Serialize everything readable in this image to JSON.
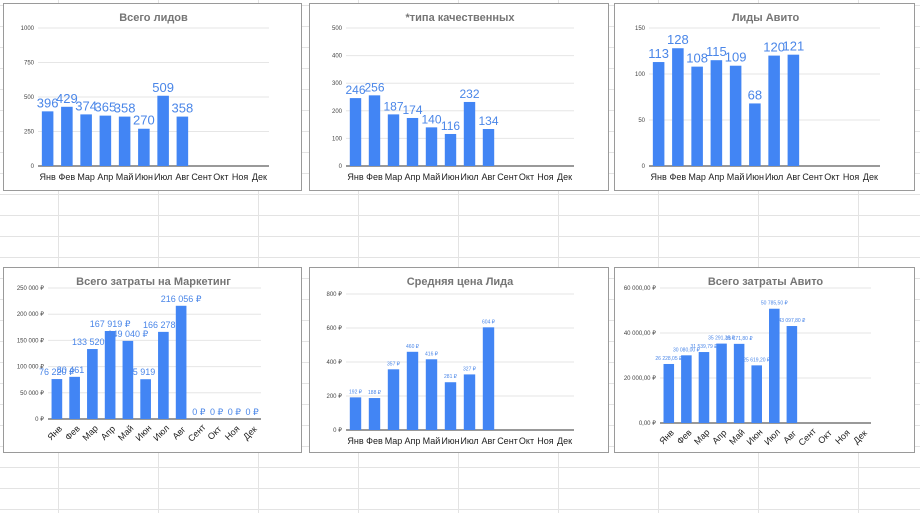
{
  "chart_data": [
    {
      "type": "bar",
      "title": "Всего лидов",
      "categories": [
        "Янв",
        "Фев",
        "Мар",
        "Апр",
        "Май",
        "Июн",
        "Июл",
        "Авг",
        "Сент",
        "Окт",
        "Ноя",
        "Дек"
      ],
      "values": [
        396,
        429,
        374,
        365,
        358,
        270,
        509,
        358,
        null,
        null,
        null,
        null
      ],
      "data_labels": [
        "396",
        "429",
        "374",
        "365",
        "358",
        "270",
        "509",
        "358",
        "",
        "",
        "",
        ""
      ],
      "yticks": [
        0,
        250,
        500,
        750,
        1000
      ],
      "ytick_labels": [
        "0",
        "250",
        "500",
        "750",
        "1000"
      ],
      "ylim": [
        0,
        1000
      ],
      "bar_color": "#4285f4",
      "label_color": "#4a86e8",
      "grid": true,
      "legend": "none"
    },
    {
      "type": "bar",
      "title": "*типа качественных",
      "categories": [
        "Янв",
        "Фев",
        "Мар",
        "Апр",
        "Май",
        "Июн",
        "Июл",
        "Авг",
        "Сент",
        "Окт",
        "Ноя",
        "Дек"
      ],
      "values": [
        246,
        256,
        187,
        174,
        140,
        116,
        232,
        134,
        null,
        null,
        null,
        null
      ],
      "data_labels": [
        "246",
        "256",
        "187",
        "174",
        "140",
        "116",
        "232",
        "134",
        "",
        "",
        "",
        ""
      ],
      "yticks": [
        0,
        100,
        200,
        300,
        400,
        500
      ],
      "ytick_labels": [
        "0",
        "100",
        "200",
        "300",
        "400",
        "500"
      ],
      "ylim": [
        0,
        500
      ],
      "bar_color": "#4285f4",
      "label_color": "#4a86e8",
      "grid": true,
      "legend": "none"
    },
    {
      "type": "bar",
      "title": "Лиды Авито",
      "categories": [
        "Янв",
        "Фев",
        "Мар",
        "Апр",
        "Май",
        "Июн",
        "Июл",
        "Авг",
        "Сент",
        "Окт",
        "Ноя",
        "Дек"
      ],
      "values": [
        113,
        128,
        108,
        115,
        109,
        68,
        120,
        121,
        null,
        null,
        null,
        null
      ],
      "data_labels": [
        "113",
        "128",
        "108",
        "115",
        "109",
        "68",
        "120",
        "121",
        "",
        "",
        "",
        ""
      ],
      "yticks": [
        0,
        50,
        100,
        150
      ],
      "ytick_labels": [
        "0",
        "50",
        "100",
        "150"
      ],
      "ylim": [
        0,
        150
      ],
      "bar_color": "#4285f4",
      "label_color": "#4a86e8",
      "grid": true,
      "legend": "none"
    },
    {
      "type": "bar",
      "title": "Всего затраты на Маркетинг",
      "categories": [
        "Янв",
        "Фев",
        "Мар",
        "Апр",
        "Май",
        "Июн",
        "Июл",
        "Авг",
        "Сент",
        "Окт",
        "Ноя",
        "Дек"
      ],
      "values": [
        76220,
        80461,
        133520,
        167919,
        149040,
        75919,
        166278,
        216056,
        0,
        0,
        0,
        0
      ],
      "data_labels": [
        "76 220 ₽",
        "80 461 ₽",
        "133 520 ₽",
        "167 919 ₽",
        "149 040 ₽",
        "75 919 ₽",
        "166 278 ₽",
        "216 056 ₽",
        "0 ₽",
        "0 ₽",
        "0 ₽",
        "0 ₽"
      ],
      "yticks": [
        0,
        50000,
        100000,
        150000,
        200000,
        250000
      ],
      "ytick_labels": [
        "0 ₽",
        "50 000 ₽",
        "100 000 ₽",
        "150 000 ₽",
        "200 000 ₽",
        "250 000 ₽"
      ],
      "ylim": [
        0,
        250000
      ],
      "rotated_categories": true,
      "bar_color": "#4285f4",
      "label_color": "#4a86e8",
      "grid": true,
      "legend": "none"
    },
    {
      "type": "bar",
      "title": "Средняя цена Лида",
      "categories": [
        "Янв",
        "Фев",
        "Мар",
        "Апр",
        "Май",
        "Июн",
        "Июл",
        "Авг",
        "Сент",
        "Окт",
        "Ноя",
        "Дек"
      ],
      "values": [
        192,
        188,
        357,
        460,
        416,
        281,
        327,
        604,
        null,
        null,
        null,
        null
      ],
      "data_labels": [
        "192 ₽",
        "188 ₽",
        "357 ₽",
        "460 ₽",
        "416 ₽",
        "281 ₽",
        "327 ₽",
        "604 ₽",
        "",
        "",
        "",
        ""
      ],
      "yticks": [
        0,
        200,
        400,
        600,
        800
      ],
      "ytick_labels": [
        "0 ₽",
        "200 ₽",
        "400 ₽",
        "600 ₽",
        "800 ₽"
      ],
      "ylim": [
        0,
        800
      ],
      "bar_color": "#4285f4",
      "label_color": "#4a86e8",
      "grid": true,
      "legend": "none"
    },
    {
      "type": "bar",
      "title": "Всего затраты Авито",
      "categories": [
        "Янв",
        "Фев",
        "Мар",
        "Апр",
        "Май",
        "Июн",
        "Июл",
        "Авг",
        "Сент",
        "Окт",
        "Ноя",
        "Дек"
      ],
      "values": [
        26228.05,
        30080,
        31539.79,
        35291.35,
        35171.8,
        25619.2,
        50785.5,
        43097.8,
        null,
        null,
        null,
        null
      ],
      "data_labels": [
        "26 228,05 ₽",
        "30 080,00 ₽",
        "31 539,79 ₽",
        "35 291,35 ₽",
        "35 171,80 ₽",
        "25 619,20 ₽",
        "50 785,50 ₽",
        "43 097,80 ₽",
        "",
        "",
        "",
        ""
      ],
      "yticks": [
        0,
        20000,
        40000,
        60000
      ],
      "ytick_labels": [
        "0,00 ₽",
        "20 000,00 ₽",
        "40 000,00 ₽",
        "60 000,00 ₽"
      ],
      "ylim": [
        0,
        60000
      ],
      "rotated_categories": true,
      "bar_color": "#4285f4",
      "label_color": "#4a86e8",
      "grid": true,
      "legend": "none"
    }
  ]
}
